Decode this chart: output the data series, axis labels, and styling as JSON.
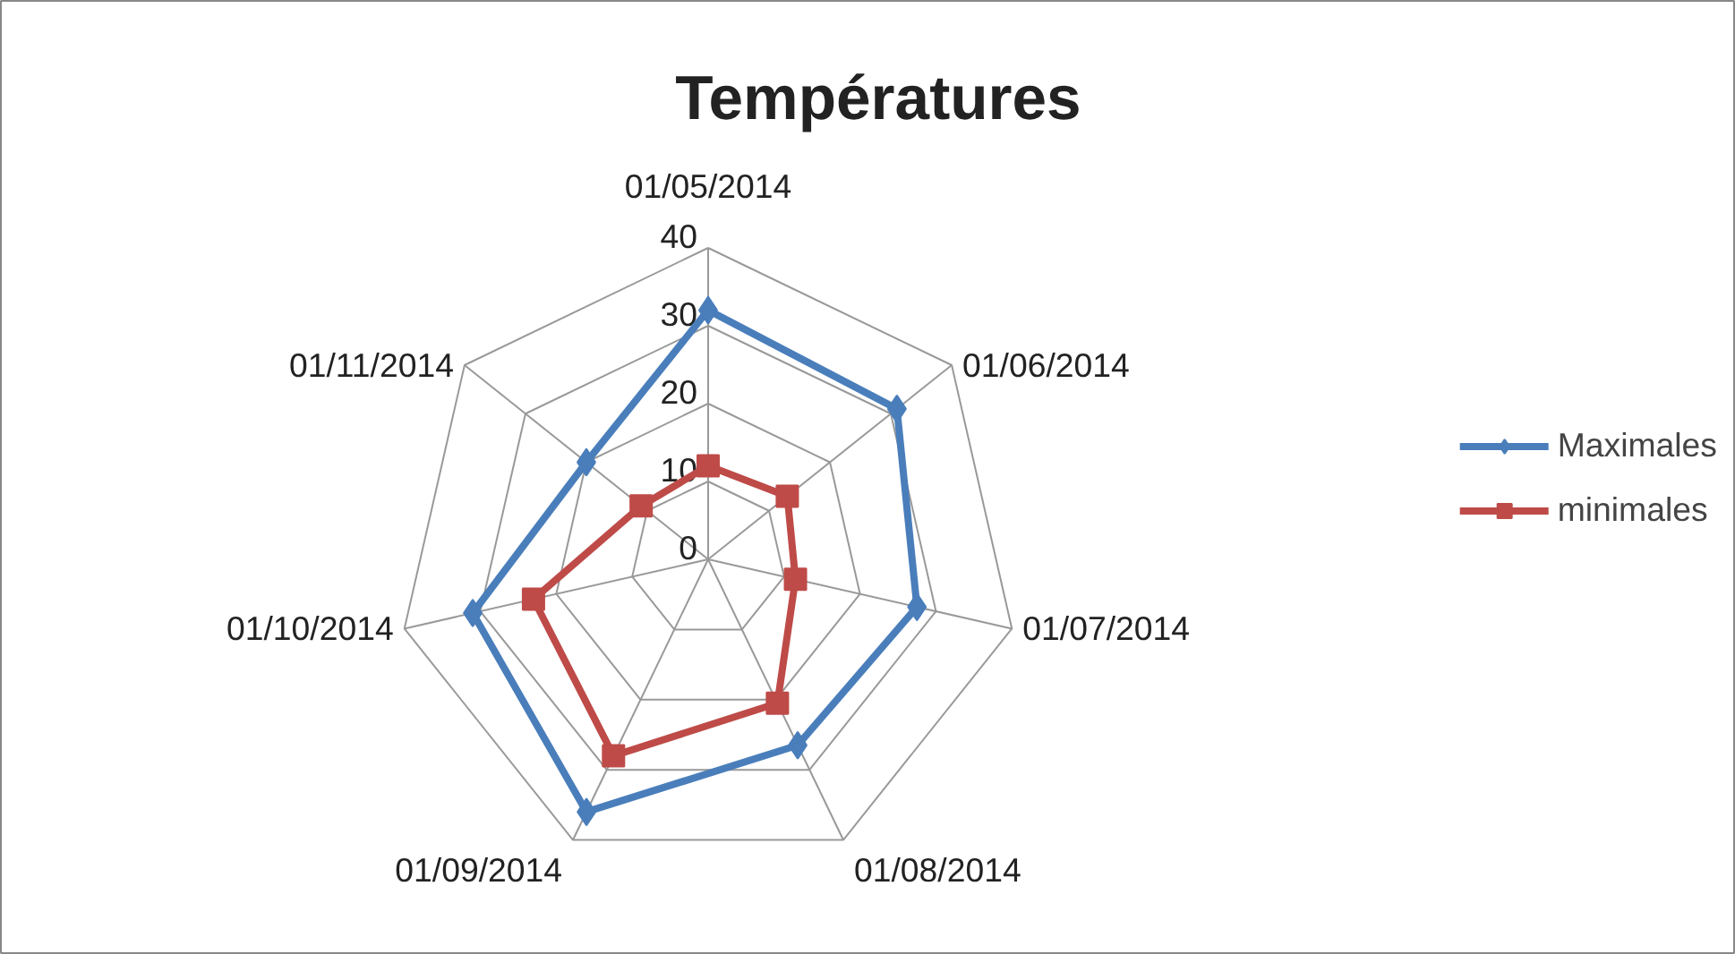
{
  "chart_data": {
    "type": "radar",
    "title": "Températures",
    "categories": [
      "01/05/2014",
      "01/06/2014",
      "01/07/2014",
      "01/08/2014",
      "01/09/2014",
      "01/10/2014",
      "01/11/2014"
    ],
    "series": [
      {
        "name": "Maximales",
        "color": "#4a7ebb",
        "values": [
          32,
          31,
          27.5,
          26.5,
          36,
          31,
          20
        ]
      },
      {
        "name": "minimales",
        "color": "#be4b48",
        "values": [
          12,
          13,
          11.5,
          20.5,
          28,
          23,
          11
        ]
      }
    ],
    "ylim": [
      0,
      40
    ],
    "yticks": [
      0,
      10,
      20,
      30,
      40
    ],
    "grid": true,
    "legend": "right",
    "marker": [
      "diamond",
      "square"
    ],
    "line_style": "solid"
  }
}
